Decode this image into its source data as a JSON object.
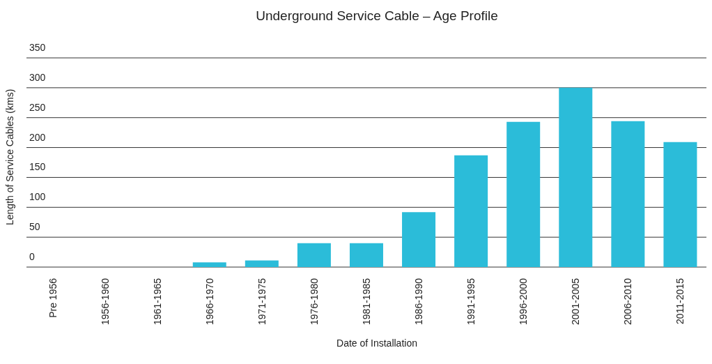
{
  "chart_data": {
    "type": "bar",
    "title": "Underground Service Cable – Age Profile",
    "xlabel": "Date of Installation",
    "ylabel": "Length of Service Cables (kms)",
    "categories": [
      "Pre 1956",
      "1956-1960",
      "1961-1965",
      "1966-1970",
      "1971-1975",
      "1976-1980",
      "1981-1985",
      "1986-1990",
      "1991-1995",
      "1996-2000",
      "2001-2005",
      "2006-2010",
      "2011-2015"
    ],
    "values": [
      0,
      0,
      0,
      8,
      11,
      40,
      40,
      92,
      187,
      243,
      300,
      244,
      209
    ],
    "color": "#2bbcd9",
    "ylim": [
      0,
      350
    ],
    "yticks": [
      0,
      50,
      100,
      150,
      200,
      250,
      300,
      350
    ],
    "grid": "y",
    "legend": false
  }
}
